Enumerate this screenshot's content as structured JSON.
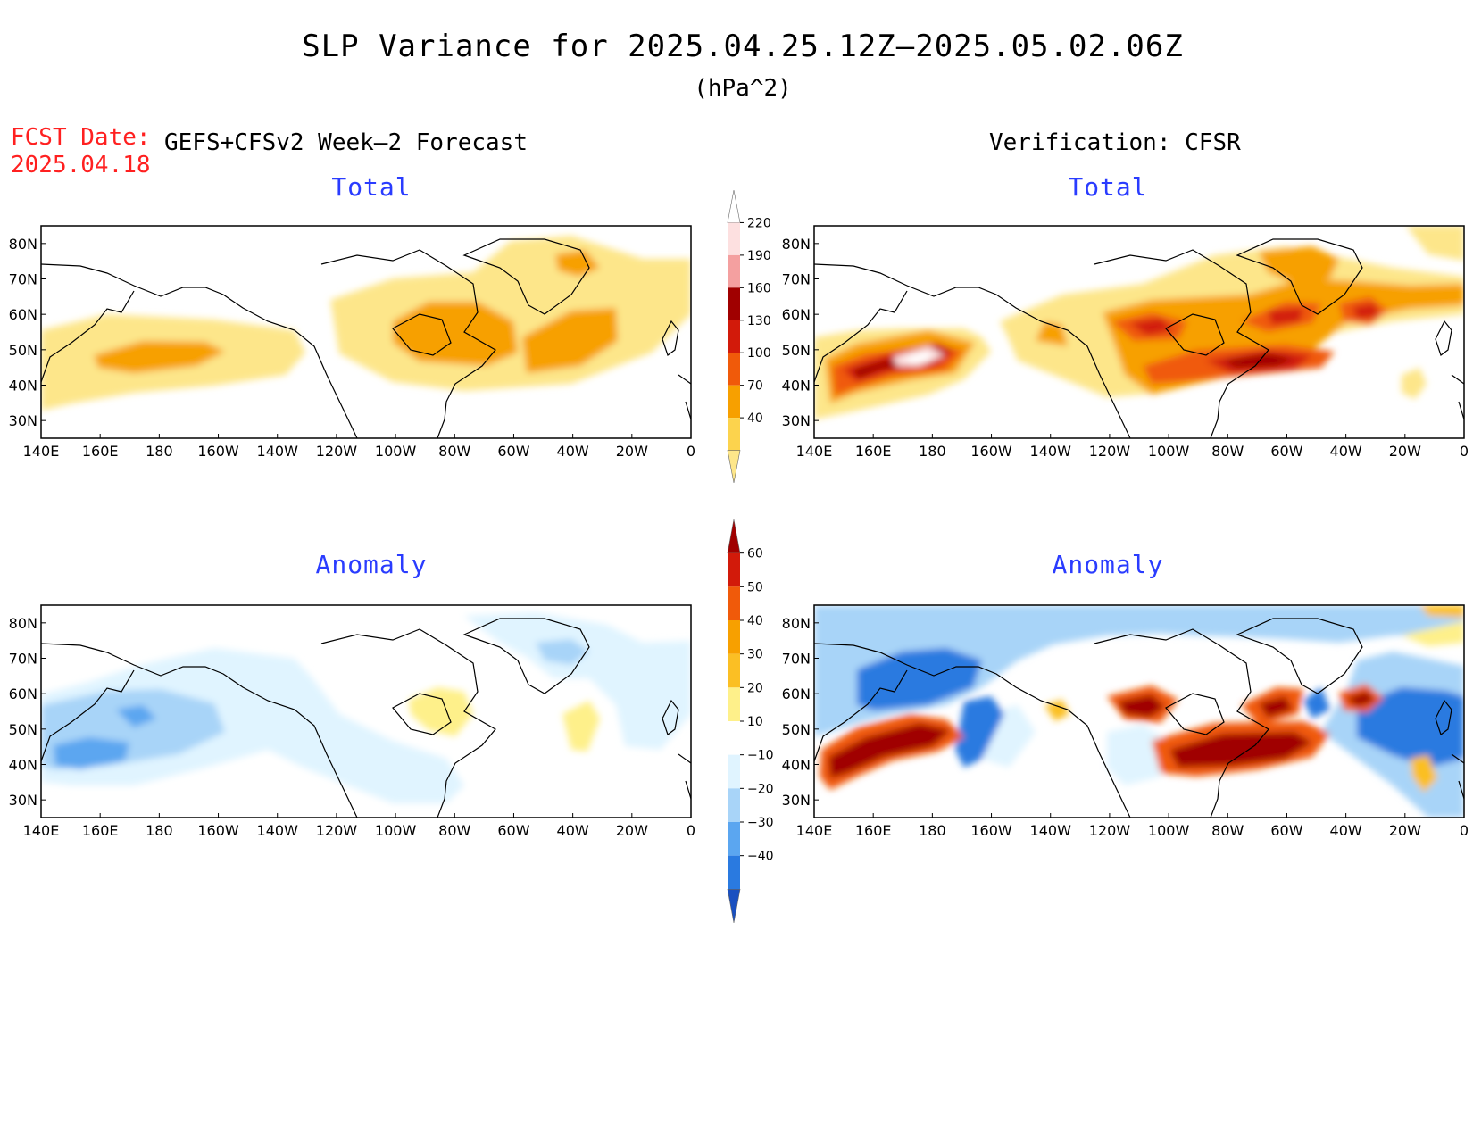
{
  "figure": {
    "title": "SLP Variance for 2025.04.25.12Z–2025.05.02.06Z",
    "units": "(hPa^2)",
    "fcst_date_label": "FCST Date:",
    "fcst_date_value": "2025.04.18",
    "left_header": "GEFS+CFSv2 Week–2 Forecast",
    "right_header": "Verification: CFSR"
  },
  "panels": {
    "forecast_total": {
      "title": "Total"
    },
    "verification_total": {
      "title": "Total"
    },
    "forecast_anomaly": {
      "title": "Anomaly"
    },
    "verification_anomaly": {
      "title": "Anomaly"
    }
  },
  "axes": {
    "lon_labels": [
      "140E",
      "160E",
      "180",
      "160W",
      "140W",
      "120W",
      "100W",
      "80W",
      "60W",
      "40W",
      "20W",
      "0"
    ],
    "lat_labels": [
      "80N",
      "70N",
      "60N",
      "50N",
      "40N",
      "30N"
    ]
  },
  "colorbars": {
    "total": {
      "labels": [
        "220",
        "190",
        "160",
        "130",
        "100",
        "70",
        "40"
      ],
      "colors": [
        "#ffffff",
        "#fde0e0",
        "#f4a0a0",
        "#a00000",
        "#d21a0a",
        "#f05a0a",
        "#f7a000",
        "#fcd34d",
        "#fde68a"
      ]
    },
    "anomaly": {
      "labels": [
        "60",
        "50",
        "40",
        "30",
        "20",
        "10",
        "−10",
        "−20",
        "−30",
        "−40"
      ],
      "colors": [
        "#a00000",
        "#d21a0a",
        "#f05a0a",
        "#f7a000",
        "#fbbf24",
        "#fef08a",
        "#ffffff",
        "#e0f4ff",
        "#a8d4f8",
        "#5ba6f0",
        "#2a7ae0",
        "#1a50c0"
      ]
    }
  },
  "chart_data": {
    "type": "heatmap",
    "title": "SLP Variance for 2025.04.25.12Z–2025.05.02.06Z",
    "units": "hPa^2",
    "x_range": [
      "140E",
      "0"
    ],
    "y_range": [
      "25N",
      "85N"
    ],
    "panels": [
      {
        "name": "GEFS+CFSv2 Week–2 Forecast – Total",
        "levels": [
          40,
          70,
          100,
          130,
          160,
          190,
          220
        ]
      },
      {
        "name": "Verification: CFSR – Total",
        "levels": [
          40,
          70,
          100,
          130,
          160,
          190,
          220
        ]
      },
      {
        "name": "GEFS+CFSv2 Week–2 Forecast – Anomaly",
        "levels": [
          -40,
          -30,
          -20,
          -10,
          10,
          20,
          30,
          40,
          50,
          60
        ]
      },
      {
        "name": "Verification: CFSR – Anomaly",
        "levels": [
          -40,
          -30,
          -20,
          -10,
          10,
          20,
          30,
          40,
          50,
          60
        ]
      }
    ]
  }
}
